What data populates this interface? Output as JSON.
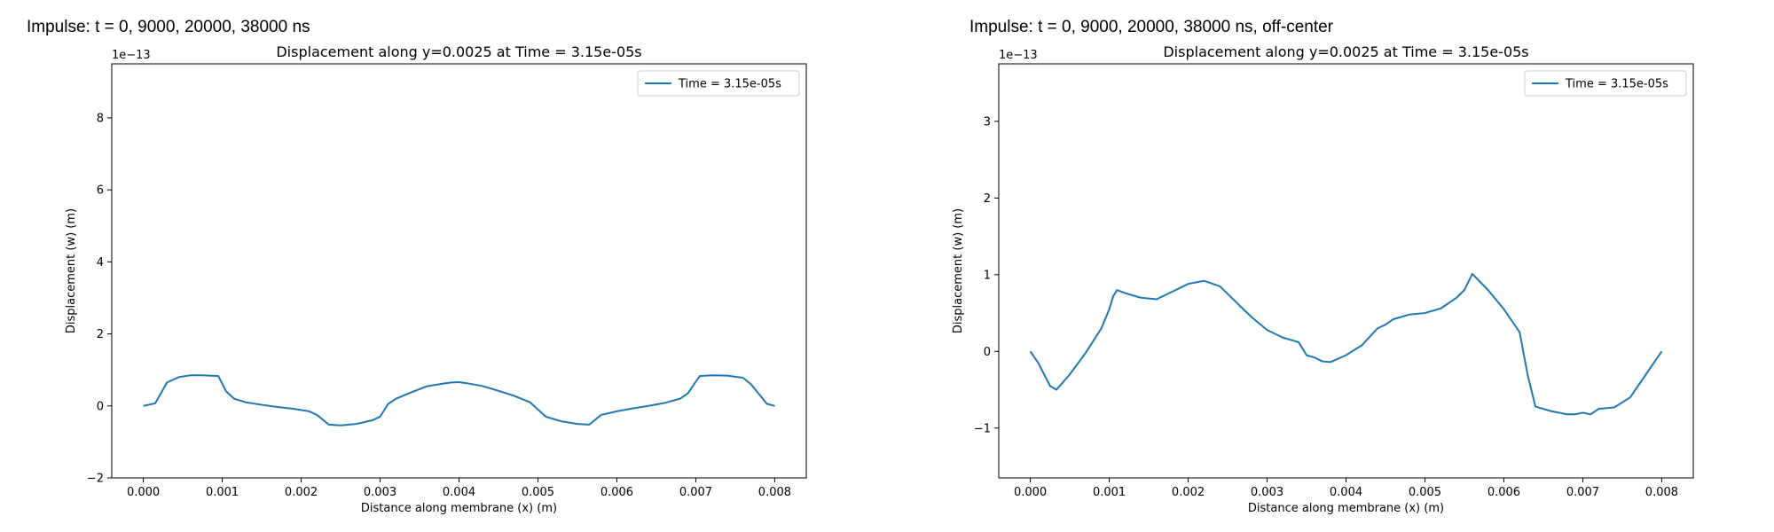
{
  "figure": {
    "colors": {
      "line": "#1f77b4",
      "axes": "#000000",
      "background": "#ffffff",
      "legend_border": "#cccccc"
    }
  },
  "chart_data": [
    {
      "type": "line",
      "suptitle": "Impulse: t = 0, 9000, 20000, 38000 ns",
      "title": "Displacement along y=0.0025 at Time = 3.15e-05s",
      "xlabel": "Distance along membrane (x) (m)",
      "ylabel": "Displacement (w) (m)",
      "offset_text": "1e−13",
      "xlim": [
        -0.0004,
        0.0084
      ],
      "ylim": [
        -2,
        9.5
      ],
      "xticks": [
        0,
        0.001,
        0.002,
        0.003,
        0.004,
        0.005,
        0.006,
        0.007,
        0.008
      ],
      "xtick_labels": [
        "0.000",
        "0.001",
        "0.002",
        "0.003",
        "0.004",
        "0.005",
        "0.006",
        "0.007",
        "0.008"
      ],
      "yticks": [
        -2,
        0,
        2,
        4,
        6,
        8
      ],
      "ytick_labels": [
        "−2",
        "0",
        "2",
        "4",
        "6",
        "8"
      ],
      "legend": {
        "location": "top-right",
        "entries": [
          "Time = 3.15e-05s"
        ]
      },
      "grid": false,
      "series": [
        {
          "name": "Time = 3.15e-05s",
          "color": "#1f77b4",
          "x": [
            0,
            0.00015,
            0.0003,
            0.00045,
            0.0006,
            0.00075,
            0.00095,
            0.00105,
            0.00115,
            0.0013,
            0.0015,
            0.0017,
            0.0019,
            0.0021,
            0.0022,
            0.00235,
            0.0025,
            0.0027,
            0.0029,
            0.003,
            0.0031,
            0.0032,
            0.0034,
            0.0036,
            0.0038,
            0.0039,
            0.004,
            0.0041,
            0.0043,
            0.0045,
            0.0047,
            0.0049,
            0.005,
            0.0051,
            0.0053,
            0.0055,
            0.00565,
            0.0058,
            0.006,
            0.0062,
            0.0064,
            0.0066,
            0.0068,
            0.0069,
            0.00705,
            0.0072,
            0.0074,
            0.0076,
            0.0077,
            0.0079,
            0.008
          ],
          "values": [
            0,
            0.07,
            0.65,
            0.8,
            0.85,
            0.85,
            0.83,
            0.4,
            0.2,
            0.1,
            0.03,
            -0.03,
            -0.08,
            -0.15,
            -0.25,
            -0.52,
            -0.54,
            -0.5,
            -0.4,
            -0.3,
            0.05,
            0.2,
            0.38,
            0.55,
            0.62,
            0.65,
            0.66,
            0.63,
            0.55,
            0.42,
            0.28,
            0.1,
            -0.1,
            -0.3,
            -0.43,
            -0.5,
            -0.52,
            -0.25,
            -0.15,
            -0.07,
            0,
            0.08,
            0.2,
            0.35,
            0.83,
            0.85,
            0.84,
            0.78,
            0.6,
            0.06,
            0
          ]
        }
      ]
    },
    {
      "type": "line",
      "suptitle": "Impulse: t = 0, 9000, 20000, 38000 ns, off-center",
      "title": "Displacement along y=0.0025 at Time = 3.15e-05s",
      "xlabel": "Distance along membrane (x) (m)",
      "ylabel": "Displacement (w) (m)",
      "offset_text": "1e−13",
      "xlim": [
        -0.0004,
        0.0084
      ],
      "ylim": [
        -1.65,
        3.75
      ],
      "xticks": [
        0,
        0.001,
        0.002,
        0.003,
        0.004,
        0.005,
        0.006,
        0.007,
        0.008
      ],
      "xtick_labels": [
        "0.000",
        "0.001",
        "0.002",
        "0.003",
        "0.004",
        "0.005",
        "0.006",
        "0.007",
        "0.008"
      ],
      "yticks": [
        -1,
        0,
        1,
        2,
        3
      ],
      "ytick_labels": [
        "−1",
        "0",
        "1",
        "2",
        "3"
      ],
      "legend": {
        "location": "top-right",
        "entries": [
          "Time = 3.15e-05s"
        ]
      },
      "grid": false,
      "series": [
        {
          "name": "Time = 3.15e-05s",
          "color": "#1f77b4",
          "x": [
            0,
            0.0001,
            0.00025,
            0.00033,
            0.0005,
            0.0007,
            0.0009,
            0.001,
            0.00105,
            0.0011,
            0.0012,
            0.0014,
            0.0016,
            0.0018,
            0.002,
            0.0022,
            0.0024,
            0.0026,
            0.0028,
            0.003,
            0.0032,
            0.0034,
            0.0035,
            0.0036,
            0.0037,
            0.0038,
            0.004,
            0.0042,
            0.0044,
            0.0045,
            0.0046,
            0.0048,
            0.005,
            0.0052,
            0.0054,
            0.0055,
            0.0056,
            0.0058,
            0.006,
            0.0062,
            0.0063,
            0.0064,
            0.0066,
            0.0068,
            0.0069,
            0.007,
            0.0071,
            0.0072,
            0.0074,
            0.0076,
            0.0078,
            0.008
          ],
          "values": [
            0,
            -0.15,
            -0.45,
            -0.5,
            -0.3,
            -0.02,
            0.3,
            0.55,
            0.72,
            0.8,
            0.76,
            0.7,
            0.68,
            0.78,
            0.88,
            0.92,
            0.85,
            0.65,
            0.45,
            0.28,
            0.18,
            0.12,
            -0.05,
            -0.08,
            -0.13,
            -0.14,
            -0.05,
            0.08,
            0.3,
            0.35,
            0.42,
            0.48,
            0.5,
            0.56,
            0.7,
            0.8,
            1.01,
            0.8,
            0.55,
            0.25,
            -0.3,
            -0.72,
            -0.78,
            -0.82,
            -0.82,
            -0.8,
            -0.82,
            -0.75,
            -0.73,
            -0.6,
            -0.3,
            0
          ]
        }
      ]
    }
  ]
}
